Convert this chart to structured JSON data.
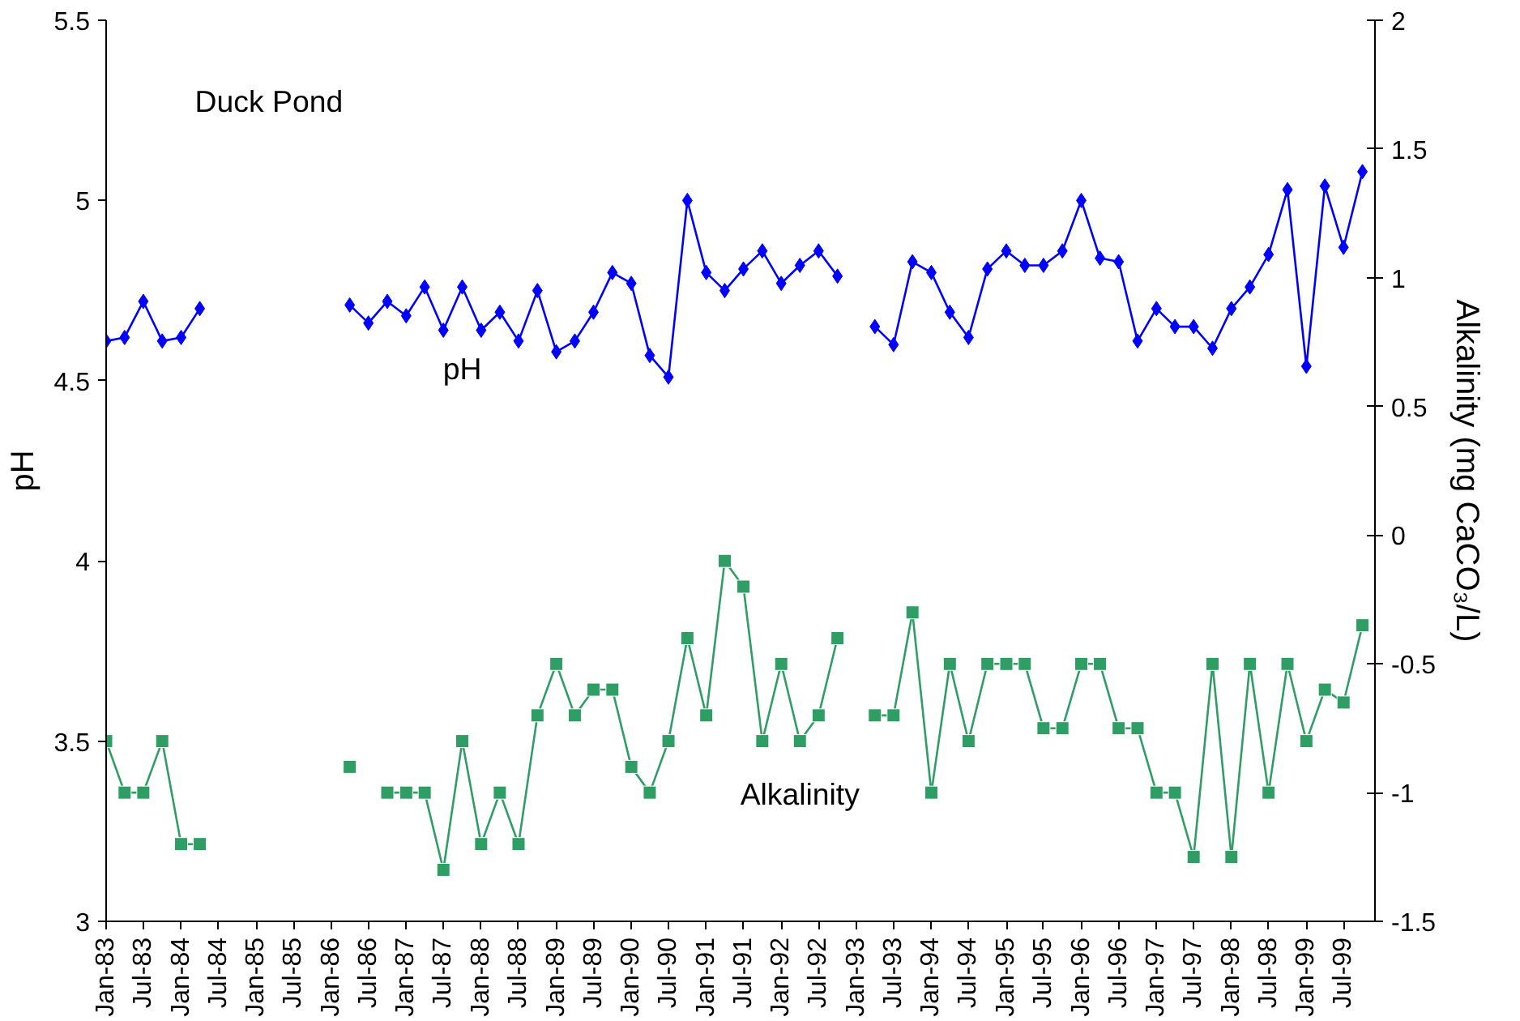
{
  "chart_data": {
    "type": "line",
    "annotations": [
      "Duck Pond"
    ],
    "x": [
      "1983-01",
      "1983-04",
      "1983-07",
      "1983-10",
      "1984-01",
      "1984-04",
      "1984-07",
      "1984-10",
      "1985-01",
      "1985-04",
      "1985-07",
      "1985-10",
      "1986-01",
      "1986-04",
      "1986-07",
      "1986-10",
      "1987-01",
      "1987-04",
      "1987-07",
      "1987-10",
      "1988-01",
      "1988-04",
      "1988-07",
      "1988-10",
      "1989-01",
      "1989-04",
      "1989-07",
      "1989-10",
      "1990-01",
      "1990-04",
      "1990-07",
      "1990-10",
      "1991-01",
      "1991-04",
      "1991-07",
      "1991-10",
      "1992-01",
      "1992-04",
      "1992-07",
      "1992-10",
      "1993-01",
      "1993-04",
      "1993-07",
      "1993-10",
      "1994-01",
      "1994-04",
      "1994-07",
      "1994-10",
      "1995-01",
      "1995-04",
      "1995-07",
      "1995-10",
      "1996-01",
      "1996-04",
      "1996-07",
      "1996-10",
      "1997-01",
      "1997-04",
      "1997-07",
      "1997-10",
      "1998-01",
      "1998-04",
      "1998-07",
      "1998-10",
      "1999-01",
      "1999-04",
      "1999-07",
      "1999-10"
    ],
    "series": [
      {
        "name": "pH",
        "color": "#0000ff",
        "marker": "diamond",
        "values": [
          4.61,
          4.62,
          4.72,
          4.61,
          4.62,
          4.7,
          null,
          null,
          null,
          null,
          null,
          null,
          null,
          4.71,
          4.66,
          4.72,
          4.68,
          4.76,
          4.64,
          4.76,
          4.64,
          4.69,
          4.61,
          4.75,
          4.58,
          4.61,
          4.69,
          4.8,
          4.77,
          4.57,
          4.51,
          5.0,
          4.8,
          4.75,
          4.81,
          4.86,
          4.77,
          4.82,
          4.86,
          4.79,
          null,
          4.65,
          4.6,
          4.83,
          4.8,
          4.69,
          4.62,
          4.81,
          4.86,
          4.82,
          4.82,
          4.86,
          5.0,
          4.84,
          4.83,
          4.61,
          4.7,
          4.65,
          4.65,
          4.59,
          4.7,
          4.76,
          4.85,
          5.03,
          4.54,
          5.04,
          4.87,
          5.08
        ]
      },
      {
        "name": "Alkalinity",
        "color": "#2e9e64",
        "marker": "square",
        "axis": "y2",
        "values": [
          -0.8,
          -1.0,
          -1.0,
          -0.8,
          -1.2,
          -1.2,
          null,
          null,
          null,
          null,
          null,
          null,
          null,
          -0.9,
          null,
          -1.0,
          -1.0,
          -1.0,
          -1.3,
          -0.8,
          -1.2,
          -1.0,
          -1.2,
          -0.7,
          -0.5,
          -0.7,
          -0.6,
          -0.6,
          -0.9,
          -1.0,
          -0.8,
          -0.4,
          -0.7,
          -0.1,
          -0.2,
          -0.8,
          -0.5,
          -0.8,
          -0.7,
          -0.4,
          null,
          -0.7,
          -0.7,
          -0.3,
          -1.0,
          -0.5,
          -0.8,
          -0.5,
          -0.5,
          -0.5,
          -0.75,
          -0.75,
          -0.5,
          -0.5,
          -0.75,
          -0.75,
          -1.0,
          -1.0,
          -1.25,
          -0.5,
          -1.25,
          -0.5,
          -1.0,
          -0.5,
          -0.8,
          -0.6,
          -0.65,
          -0.35
        ]
      }
    ],
    "ylabel": "pH",
    "y2label": "Alkalinity (mg CaCO₃/L)",
    "xlim": [
      "1983-01",
      "1999-12"
    ],
    "xticks": [
      {
        "value": "1983-01",
        "label": "Jan-83"
      },
      {
        "value": "1983-07",
        "label": "Jul-83"
      },
      {
        "value": "1984-01",
        "label": "Jan-84"
      },
      {
        "value": "1984-07",
        "label": "Jul-84"
      },
      {
        "value": "1985-01",
        "label": "Jan-85"
      },
      {
        "value": "1985-07",
        "label": "Jul-85"
      },
      {
        "value": "1986-01",
        "label": "Jan-86"
      },
      {
        "value": "1986-07",
        "label": "Jul-86"
      },
      {
        "value": "1987-01",
        "label": "Jan-87"
      },
      {
        "value": "1987-07",
        "label": "Jul-87"
      },
      {
        "value": "1988-01",
        "label": "Jan-88"
      },
      {
        "value": "1988-07",
        "label": "Jul-88"
      },
      {
        "value": "1989-01",
        "label": "Jan-89"
      },
      {
        "value": "1989-07",
        "label": "Jul-89"
      },
      {
        "value": "1990-01",
        "label": "Jan-90"
      },
      {
        "value": "1990-07",
        "label": "Jul-90"
      },
      {
        "value": "1991-01",
        "label": "Jan-91"
      },
      {
        "value": "1991-07",
        "label": "Jul-91"
      },
      {
        "value": "1992-01",
        "label": "Jan-92"
      },
      {
        "value": "1992-07",
        "label": "Jul-92"
      },
      {
        "value": "1993-01",
        "label": "Jan-93"
      },
      {
        "value": "1993-07",
        "label": "Jul-93"
      },
      {
        "value": "1994-01",
        "label": "Jan-94"
      },
      {
        "value": "1994-07",
        "label": "Jul-94"
      },
      {
        "value": "1995-01",
        "label": "Jan-95"
      },
      {
        "value": "1995-07",
        "label": "Jul-95"
      },
      {
        "value": "1996-01",
        "label": "Jan-96"
      },
      {
        "value": "1996-07",
        "label": "Jul-96"
      },
      {
        "value": "1997-01",
        "label": "Jan-97"
      },
      {
        "value": "1997-07",
        "label": "Jul-97"
      },
      {
        "value": "1998-01",
        "label": "Jan-98"
      },
      {
        "value": "1998-07",
        "label": "Jul-98"
      },
      {
        "value": "1999-01",
        "label": "Jan-99"
      },
      {
        "value": "1999-07",
        "label": "Jul-99"
      }
    ],
    "ylim": [
      3,
      5.5
    ],
    "yticks": [
      3,
      3.5,
      4,
      4.5,
      5,
      5.5
    ],
    "y2lim": [
      -1.5,
      2
    ],
    "y2ticks": [
      -1.5,
      -1,
      -0.5,
      0,
      0.5,
      1,
      1.5,
      2
    ],
    "grid": false,
    "line_style": "solid"
  }
}
